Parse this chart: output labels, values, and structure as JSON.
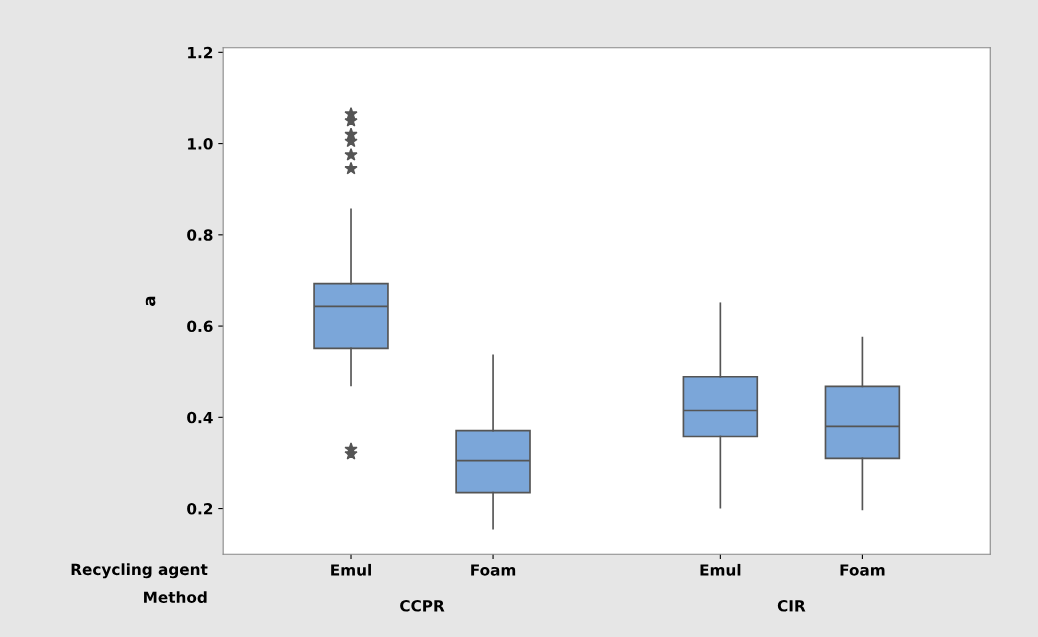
{
  "chart_data": {
    "type": "box",
    "ylabel": "a",
    "categories": [
      "Emul",
      "Foam",
      "Emul",
      "Foam"
    ],
    "annotations": [
      "Recycling agent",
      "Method",
      "CCPR",
      "CIR"
    ],
    "color": "#7ba6d9",
    "marker": "star",
    "boxes": [
      {
        "low": 0.47,
        "q1": 0.551,
        "median": 0.643,
        "q3": 0.693,
        "high": 0.856,
        "outliers": [
          1.065,
          1.05,
          1.02,
          1.005,
          0.975,
          0.945,
          0.33,
          0.32
        ]
      },
      {
        "low": 0.156,
        "q1": 0.235,
        "median": 0.305,
        "q3": 0.371,
        "high": 0.536
      },
      {
        "low": 0.202,
        "q1": 0.358,
        "median": 0.415,
        "q3": 0.489,
        "high": 0.65
      },
      {
        "low": 0.198,
        "q1": 0.31,
        "median": 0.38,
        "q3": 0.468,
        "high": 0.575
      }
    ],
    "ylim": [
      0.1,
      1.21
    ],
    "yticks": [
      {
        "value": 0.2,
        "label": "0.2"
      },
      {
        "value": 0.4,
        "label": "0.4"
      },
      {
        "value": 0.6,
        "label": "0.6"
      },
      {
        "value": 0.8,
        "label": "0.8"
      },
      {
        "value": 1.0,
        "label": "1.0"
      },
      {
        "value": 1.2,
        "label": "1.2"
      }
    ],
    "grid": false
  }
}
